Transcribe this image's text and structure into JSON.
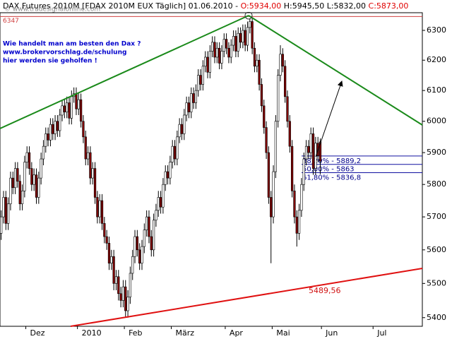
{
  "header": {
    "text": "DAX Futures 2010M [FDAX 2010M EUX  Täglich] 01.06.2010 -",
    "ohlc": [
      {
        "value": 5934,
        "label": "O:5934,00"
      },
      {
        "value": 5945.5,
        "label": "H:5945,50"
      },
      {
        "value": 5832,
        "label": "L:5832,00"
      },
      {
        "value": 5873,
        "label": "C:5873,00"
      }
    ]
  },
  "chart_data": {
    "type": "candlestick",
    "watermark": "© www.tradesignalonline.com",
    "notes": [
      "Wie handelt man am besten den Dax ?",
      "www.brokervorschlag.de/schulung",
      "hier werden sie geholfen !"
    ],
    "categories": [
      null,
      null,
      null,
      null,
      null,
      null,
      null,
      null,
      null,
      null,
      null,
      "Dez",
      null,
      null,
      null,
      null,
      null,
      null,
      null,
      null,
      null,
      null,
      null,
      null,
      null,
      null,
      null,
      null,
      null,
      null,
      null,
      null,
      null,
      "2010",
      null,
      null,
      null,
      null,
      null,
      null,
      null,
      null,
      null,
      null,
      null,
      null,
      null,
      null,
      null,
      null,
      null,
      null,
      null,
      "Feb",
      null,
      null,
      null,
      null,
      null,
      null,
      null,
      null,
      null,
      null,
      null,
      null,
      null,
      null,
      null,
      null,
      null,
      null,
      null,
      "März",
      null,
      null,
      null,
      null,
      null,
      null,
      null,
      null,
      null,
      null,
      null,
      null,
      null,
      null,
      null,
      null,
      null,
      null,
      null,
      null,
      null,
      null,
      "Apr",
      null,
      null,
      null,
      null,
      null,
      null,
      null,
      null,
      null,
      null,
      null,
      null,
      null,
      null,
      null,
      null,
      null,
      null,
      null,
      "Mai",
      null,
      null,
      null,
      null,
      null,
      null,
      null,
      null,
      null,
      null,
      null,
      null,
      null,
      null,
      null,
      null,
      null,
      null,
      null,
      null,
      "Jun",
      null,
      null,
      null,
      null,
      null,
      null,
      null,
      null,
      null,
      null,
      null,
      null,
      null,
      null,
      null,
      null,
      null,
      null,
      null,
      null,
      null,
      "Jul",
      null,
      null,
      null,
      null,
      null,
      null,
      null,
      null,
      null,
      null,
      null,
      null,
      null,
      null,
      null,
      null,
      null,
      null,
      null,
      null
    ],
    "open": [
      5650,
      5700,
      5760,
      5680,
      5740,
      5820,
      5790,
      5850,
      5810,
      5740,
      5780,
      5870,
      5900,
      5850,
      5800,
      5830,
      5760,
      5820,
      5880,
      5920,
      5960,
      5940,
      5990,
      5960,
      6000,
      5970,
      6020,
      6050,
      6030,
      6060,
      6010,
      6080,
      6090,
      6040,
      6070,
      6000,
      5950,
      5880,
      5900,
      5820,
      5850,
      5760,
      5700,
      5750,
      5680,
      5640,
      5620,
      5560,
      5580,
      5500,
      5520,
      5470,
      5450,
      5490,
      5420,
      5460,
      5530,
      5580,
      5640,
      5600,
      5560,
      5610,
      5660,
      5700,
      5640,
      5600,
      5690,
      5720,
      5760,
      5730,
      5800,
      5840,
      5820,
      5870,
      5920,
      5880,
      5950,
      5990,
      5960,
      6020,
      6060,
      6030,
      6090,
      6060,
      6100,
      6150,
      6120,
      6180,
      6210,
      6160,
      6230,
      6260,
      6210,
      6240,
      6190,
      6230,
      6270,
      6240,
      6210,
      6250,
      6280,
      6230,
      6290,
      6260,
      6300,
      6250,
      6310,
      6330,
      6240,
      6180,
      6200,
      6120,
      6050,
      5980,
      5900,
      5760,
      5700,
      5840,
      6000,
      6150,
      6220,
      6180,
      6080,
      6000,
      5920,
      5780,
      5700,
      5650,
      5720,
      5800,
      5880,
      5920,
      5900,
      5960,
      5850,
      5930,
      5934,
      null,
      null,
      null,
      null,
      null,
      null,
      null,
      null,
      null,
      null,
      null,
      null,
      null,
      null,
      null,
      null,
      null,
      null,
      null,
      null,
      null,
      null,
      null,
      null,
      null,
      null,
      null,
      null,
      null,
      null,
      null,
      null,
      null,
      null,
      null,
      null,
      null,
      null,
      null,
      null,
      null,
      null,
      null
    ],
    "high": [
      5720,
      5780,
      5780,
      5760,
      5840,
      5840,
      5870,
      5870,
      5830,
      5800,
      5890,
      5920,
      5920,
      5870,
      5850,
      5850,
      5840,
      5900,
      5940,
      5980,
      5980,
      6010,
      6010,
      6020,
      6020,
      6040,
      6070,
      6070,
      6080,
      6080,
      6100,
      6110,
      6110,
      6090,
      6090,
      6020,
      5970,
      5920,
      5920,
      5870,
      5870,
      5780,
      5770,
      5770,
      5700,
      5660,
      5640,
      5600,
      5600,
      5540,
      5540,
      5490,
      5510,
      5510,
      5480,
      5550,
      5600,
      5660,
      5660,
      5620,
      5630,
      5680,
      5720,
      5720,
      5660,
      5710,
      5740,
      5780,
      5780,
      5820,
      5860,
      5860,
      5890,
      5940,
      5940,
      5970,
      6010,
      6010,
      6040,
      6080,
      6080,
      6110,
      6110,
      6120,
      6170,
      6170,
      6200,
      6230,
      6230,
      6250,
      6280,
      6280,
      6260,
      6260,
      6250,
      6290,
      6290,
      6260,
      6270,
      6300,
      6300,
      6310,
      6310,
      6320,
      6320,
      6330,
      6341,
      6340,
      6260,
      6220,
      6220,
      6140,
      6070,
      6000,
      5920,
      5780,
      5860,
      6020,
      6170,
      6250,
      6240,
      6200,
      6100,
      6020,
      5940,
      5800,
      5720,
      5740,
      5820,
      5900,
      5940,
      5940,
      5980,
      5980,
      5950,
      5950,
      5945,
      null,
      null,
      null,
      null,
      null,
      null,
      null,
      null,
      null,
      null,
      null,
      null,
      null,
      null,
      null,
      null,
      null,
      null,
      null,
      null,
      null,
      null,
      null,
      null,
      null,
      null,
      null,
      null,
      null,
      null,
      null,
      null,
      null,
      null,
      null,
      null,
      null,
      null,
      null,
      null,
      null,
      null,
      null
    ],
    "low": [
      5630,
      5680,
      5660,
      5660,
      5720,
      5770,
      5770,
      5790,
      5720,
      5720,
      5760,
      5850,
      5830,
      5780,
      5780,
      5740,
      5740,
      5800,
      5860,
      5900,
      5920,
      5920,
      5940,
      5940,
      5950,
      5950,
      6000,
      6010,
      6010,
      5990,
      5990,
      6060,
      6020,
      6020,
      5980,
      5930,
      5860,
      5860,
      5800,
      5800,
      5740,
      5680,
      5680,
      5660,
      5620,
      5600,
      5540,
      5540,
      5480,
      5480,
      5450,
      5430,
      5430,
      5400,
      5400,
      5440,
      5510,
      5560,
      5580,
      5540,
      5540,
      5590,
      5640,
      5620,
      5580,
      5580,
      5670,
      5700,
      5710,
      5710,
      5780,
      5800,
      5800,
      5850,
      5860,
      5860,
      5930,
      5940,
      5940,
      6000,
      6010,
      6010,
      6040,
      6040,
      6080,
      6100,
      6100,
      6160,
      6140,
      6140,
      6210,
      6190,
      6190,
      6170,
      6170,
      6210,
      6220,
      6190,
      6190,
      6230,
      6210,
      6210,
      6240,
      6240,
      6230,
      6230,
      6290,
      6220,
      6160,
      6160,
      6100,
      6030,
      5960,
      5880,
      5740,
      5560,
      5680,
      5820,
      5980,
      6130,
      6160,
      6060,
      5980,
      5900,
      5760,
      5680,
      5610,
      5630,
      5700,
      5780,
      5860,
      5880,
      5880,
      5830,
      5830,
      5870,
      5832,
      null,
      null,
      null,
      null,
      null,
      null,
      null,
      null,
      null,
      null,
      null,
      null,
      null,
      null,
      null,
      null,
      null,
      null,
      null,
      null,
      null,
      null,
      null,
      null,
      null,
      null,
      null,
      null,
      null,
      null,
      null,
      null,
      null,
      null,
      null,
      null,
      null,
      null,
      null,
      null,
      null,
      null,
      null
    ],
    "close": [
      5700,
      5760,
      5680,
      5740,
      5820,
      5790,
      5850,
      5810,
      5740,
      5780,
      5870,
      5900,
      5850,
      5800,
      5830,
      5760,
      5820,
      5880,
      5920,
      5960,
      5940,
      5990,
      5960,
      6000,
      5970,
      6020,
      6050,
      6030,
      6060,
      6010,
      6080,
      6090,
      6040,
      6070,
      6000,
      5950,
      5880,
      5900,
      5820,
      5850,
      5760,
      5700,
      5750,
      5680,
      5640,
      5620,
      5560,
      5580,
      5500,
      5520,
      5470,
      5450,
      5490,
      5420,
      5460,
      5530,
      5580,
      5640,
      5600,
      5560,
      5610,
      5660,
      5700,
      5640,
      5600,
      5690,
      5720,
      5760,
      5730,
      5800,
      5840,
      5820,
      5870,
      5920,
      5880,
      5950,
      5990,
      5960,
      6020,
      6060,
      6030,
      6090,
      6060,
      6100,
      6150,
      6120,
      6180,
      6210,
      6160,
      6230,
      6260,
      6210,
      6240,
      6190,
      6230,
      6270,
      6240,
      6210,
      6250,
      6280,
      6230,
      6290,
      6260,
      6300,
      6250,
      6310,
      6330,
      6240,
      6180,
      6200,
      6120,
      6050,
      5980,
      5900,
      5760,
      5700,
      5840,
      6000,
      6150,
      6220,
      6180,
      6080,
      6000,
      5920,
      5780,
      5700,
      5650,
      5720,
      5800,
      5880,
      5920,
      5900,
      5960,
      5850,
      5930,
      5890,
      5873,
      null,
      null,
      null,
      null,
      null,
      null,
      null,
      null,
      null,
      null,
      null,
      null,
      null,
      null,
      null,
      null,
      null,
      null,
      null,
      null,
      null,
      null,
      null,
      null,
      null,
      null,
      null,
      null,
      null,
      null,
      null,
      null,
      null,
      null,
      null,
      null,
      null,
      null,
      null,
      null,
      null,
      null,
      null
    ],
    "up_color": "#ffffff",
    "down_color": "#800000",
    "ylim": [
      5375,
      6360
    ],
    "log_scale": true,
    "yticks": [
      5400,
      5500,
      5600,
      5700,
      5800,
      5900,
      6000,
      6100,
      6200,
      6300
    ],
    "level": {
      "value": 6347,
      "label": "6347"
    },
    "fib_levels": [
      {
        "value": 5889.2,
        "label": "38,20% - 5889,2"
      },
      {
        "value": 5863,
        "label": "50,00% - 5863"
      },
      {
        "value": 5836.8,
        "label": "61,80% - 5836,8"
      }
    ],
    "support_label": {
      "value": 5489.56,
      "label": "5489,56"
    }
  }
}
